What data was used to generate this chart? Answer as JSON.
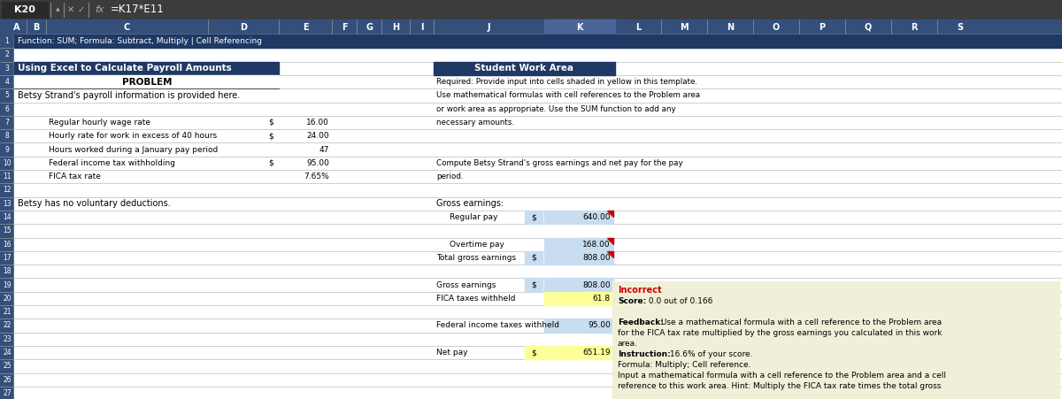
{
  "formula_bar_cell": "K20",
  "formula_bar_formula": "=K17*E11",
  "row1_text": "Function: SUM; Formula: Subtract, Multiply | Cell Referencing",
  "row1_bg": "#1F3864",
  "title_text": "Using Excel to Calculate Payroll Amounts",
  "title_bg": "#1F3864",
  "problem_text": "PROBLEM",
  "student_work_header": "Student Work Area",
  "student_work_bg": "#1F3864",
  "required_text_lines": [
    "Required: Provide input into cells shaded in yellow in this template.",
    "Use mathematical formulas with cell references to the Problem area",
    "or work area as appropriate. Use the SUM function to add any",
    "necessary amounts."
  ],
  "compute_text_lines": [
    "Compute Betsy Strand's gross earnings and net pay for the pay",
    "period."
  ],
  "row5_text": "Betsy Strand's payroll information is provided here.",
  "payroll_rows": [
    {
      "row": 7,
      "label": "Regular hourly wage rate",
      "dollar": "$",
      "value": "16.00"
    },
    {
      "row": 8,
      "label": "Hourly rate for work in excess of 40 hours",
      "dollar": "$",
      "value": "24.00"
    },
    {
      "row": 9,
      "label": "Hours worked during a January pay period",
      "dollar": null,
      "value": "47"
    },
    {
      "row": 10,
      "label": "Federal income tax withholding",
      "dollar": "$",
      "value": "95.00"
    },
    {
      "row": 11,
      "label": "FICA tax rate",
      "dollar": null,
      "value": "7.65%"
    }
  ],
  "row13_text": "Betsy has no voluntary deductions.",
  "gross_label": "Gross earnings:",
  "regular_pay_label": "Regular pay",
  "regular_pay_dollar": "$",
  "regular_pay_value": "640.00",
  "overtime_pay_label": "Overtime pay",
  "overtime_pay_value": "168.00",
  "total_gross_label": "Total gross earnings",
  "total_gross_dollar": "$",
  "total_gross_value": "808.00",
  "gross_earnings_label": "Gross earnings",
  "gross_earnings_dollar": "$",
  "gross_earnings_value": "808.00",
  "fica_label": "FICA taxes withheld",
  "fica_value": "61.8",
  "federal_label": "Federal income taxes withheld",
  "federal_value": "95.00",
  "net_pay_label": "Net pay",
  "net_pay_dollar": "$",
  "net_pay_value": "651.19",
  "incorrect_label": "Incorrect",
  "score_bold": "Score:",
  "score_rest": " 0.0 out of 0.166",
  "feedback_bold": "Feedback:",
  "feedback_rest": " Use a mathematical formula with a cell reference to the Problem area",
  "feedback_line2": "for the FICA tax rate multiplied by the gross earnings you calculated in this work",
  "feedback_line3": "area.",
  "instruction_bold": "Instruction:",
  "instruction_rest": " 16.6% of your score.",
  "formula_line": "Formula: Multiply; Cell reference.",
  "hint_line1": "Input a mathematical formula with a cell reference to the Problem area and a cell",
  "hint_line2": "reference to this work area. Hint: Multiply the FICA tax rate times the total gross",
  "col_positions": [
    [
      "A",
      8,
      22
    ],
    [
      "B",
      30,
      22
    ],
    [
      "C",
      52,
      183
    ],
    [
      "D",
      235,
      80
    ],
    [
      "E",
      315,
      60
    ],
    [
      "F",
      375,
      28
    ],
    [
      "G",
      403,
      28
    ],
    [
      "H",
      431,
      32
    ],
    [
      "I",
      463,
      27
    ],
    [
      "J",
      490,
      125
    ],
    [
      "K",
      615,
      80
    ],
    [
      "L",
      695,
      52
    ],
    [
      "M",
      747,
      52
    ],
    [
      "N",
      799,
      52
    ],
    [
      "O",
      851,
      52
    ],
    [
      "P",
      903,
      52
    ],
    [
      "Q",
      955,
      52
    ],
    [
      "R",
      1007,
      52
    ],
    [
      "S",
      1059,
      52
    ]
  ],
  "header_bg": "#344F7A",
  "col_K_header_bg": "#4A6699",
  "grid_color": "#AAAAAA",
  "cell_bg": "#FFFFFF",
  "light_blue_cell": "#C8DDF0",
  "yellow_cell": "#FFFF99",
  "tooltip_bg": "#F0F0D8",
  "tooltip_border": "#999999",
  "error_border_color": "#CC0000",
  "formula_bar_bg": "#3C3C3C",
  "formula_bar_cell_bg": "#2A2A2A",
  "row_header_bg": "#344F7A",
  "row1_stripe_bg": "#1F3864",
  "overall_bg": "#B8B8B8"
}
